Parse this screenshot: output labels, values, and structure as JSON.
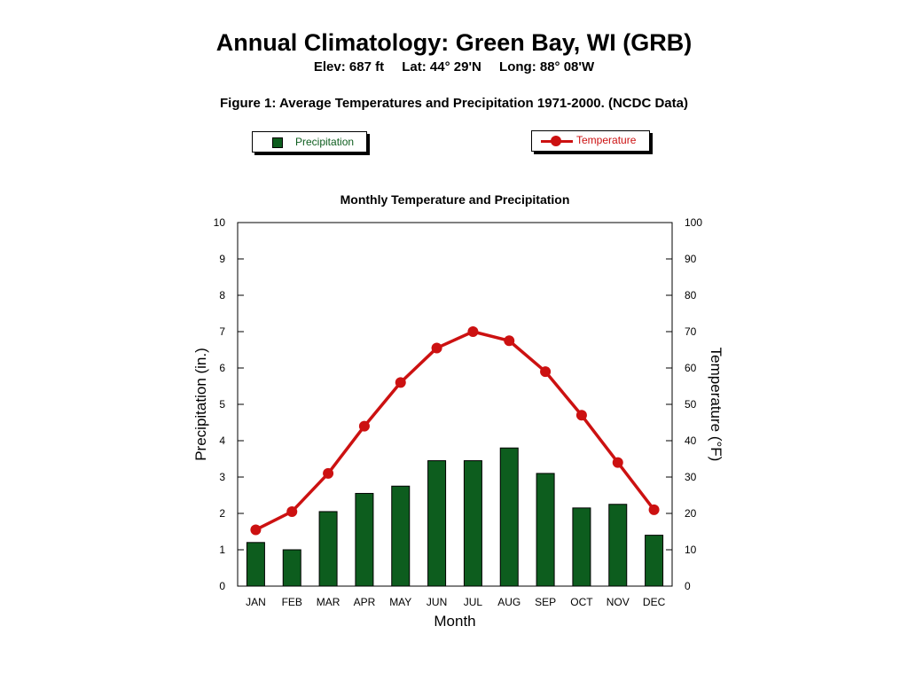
{
  "header": {
    "title": "Annual Climatology: Green Bay, WI (GRB)",
    "elevation": "Elev: 687 ft",
    "latitude": "Lat: 44° 29'N",
    "longitude": "Long: 88° 08'W",
    "caption": "Figure 1: Average Temperatures and Precipitation 1971-2000. (NCDC Data)"
  },
  "legend": {
    "precipitation": "Precipitation",
    "temperature": "Temperature"
  },
  "colors": {
    "precipitation": "#0d5d1e",
    "temperature": "#cc1111"
  },
  "chart_data": {
    "type": "bar",
    "title": "Monthly Temperature and Precipitation",
    "xlabel": "Month",
    "ylabel": "Precipitation (in.)",
    "y2label": "Temperature (°F)",
    "categories": [
      "JAN",
      "FEB",
      "MAR",
      "APR",
      "MAY",
      "JUN",
      "JUL",
      "AUG",
      "SEP",
      "OCT",
      "NOV",
      "DEC"
    ],
    "ylim": [
      0,
      10
    ],
    "y2lim": [
      0,
      100
    ],
    "yticks": [
      0,
      1,
      2,
      3,
      4,
      5,
      6,
      7,
      8,
      9,
      10
    ],
    "y2ticks": [
      0,
      10,
      20,
      30,
      40,
      50,
      60,
      70,
      80,
      90,
      100
    ],
    "series": [
      {
        "name": "Precipitation",
        "type": "bar",
        "axis": "left",
        "values": [
          1.2,
          1.0,
          2.05,
          2.55,
          2.75,
          3.45,
          3.45,
          3.8,
          3.1,
          2.15,
          2.25,
          1.4
        ]
      },
      {
        "name": "Temperature",
        "type": "line",
        "axis": "right",
        "values": [
          15.5,
          20.5,
          31,
          44,
          56,
          65.5,
          70,
          67.5,
          59,
          47,
          34,
          21
        ]
      }
    ],
    "grid": false,
    "legend": "top"
  }
}
